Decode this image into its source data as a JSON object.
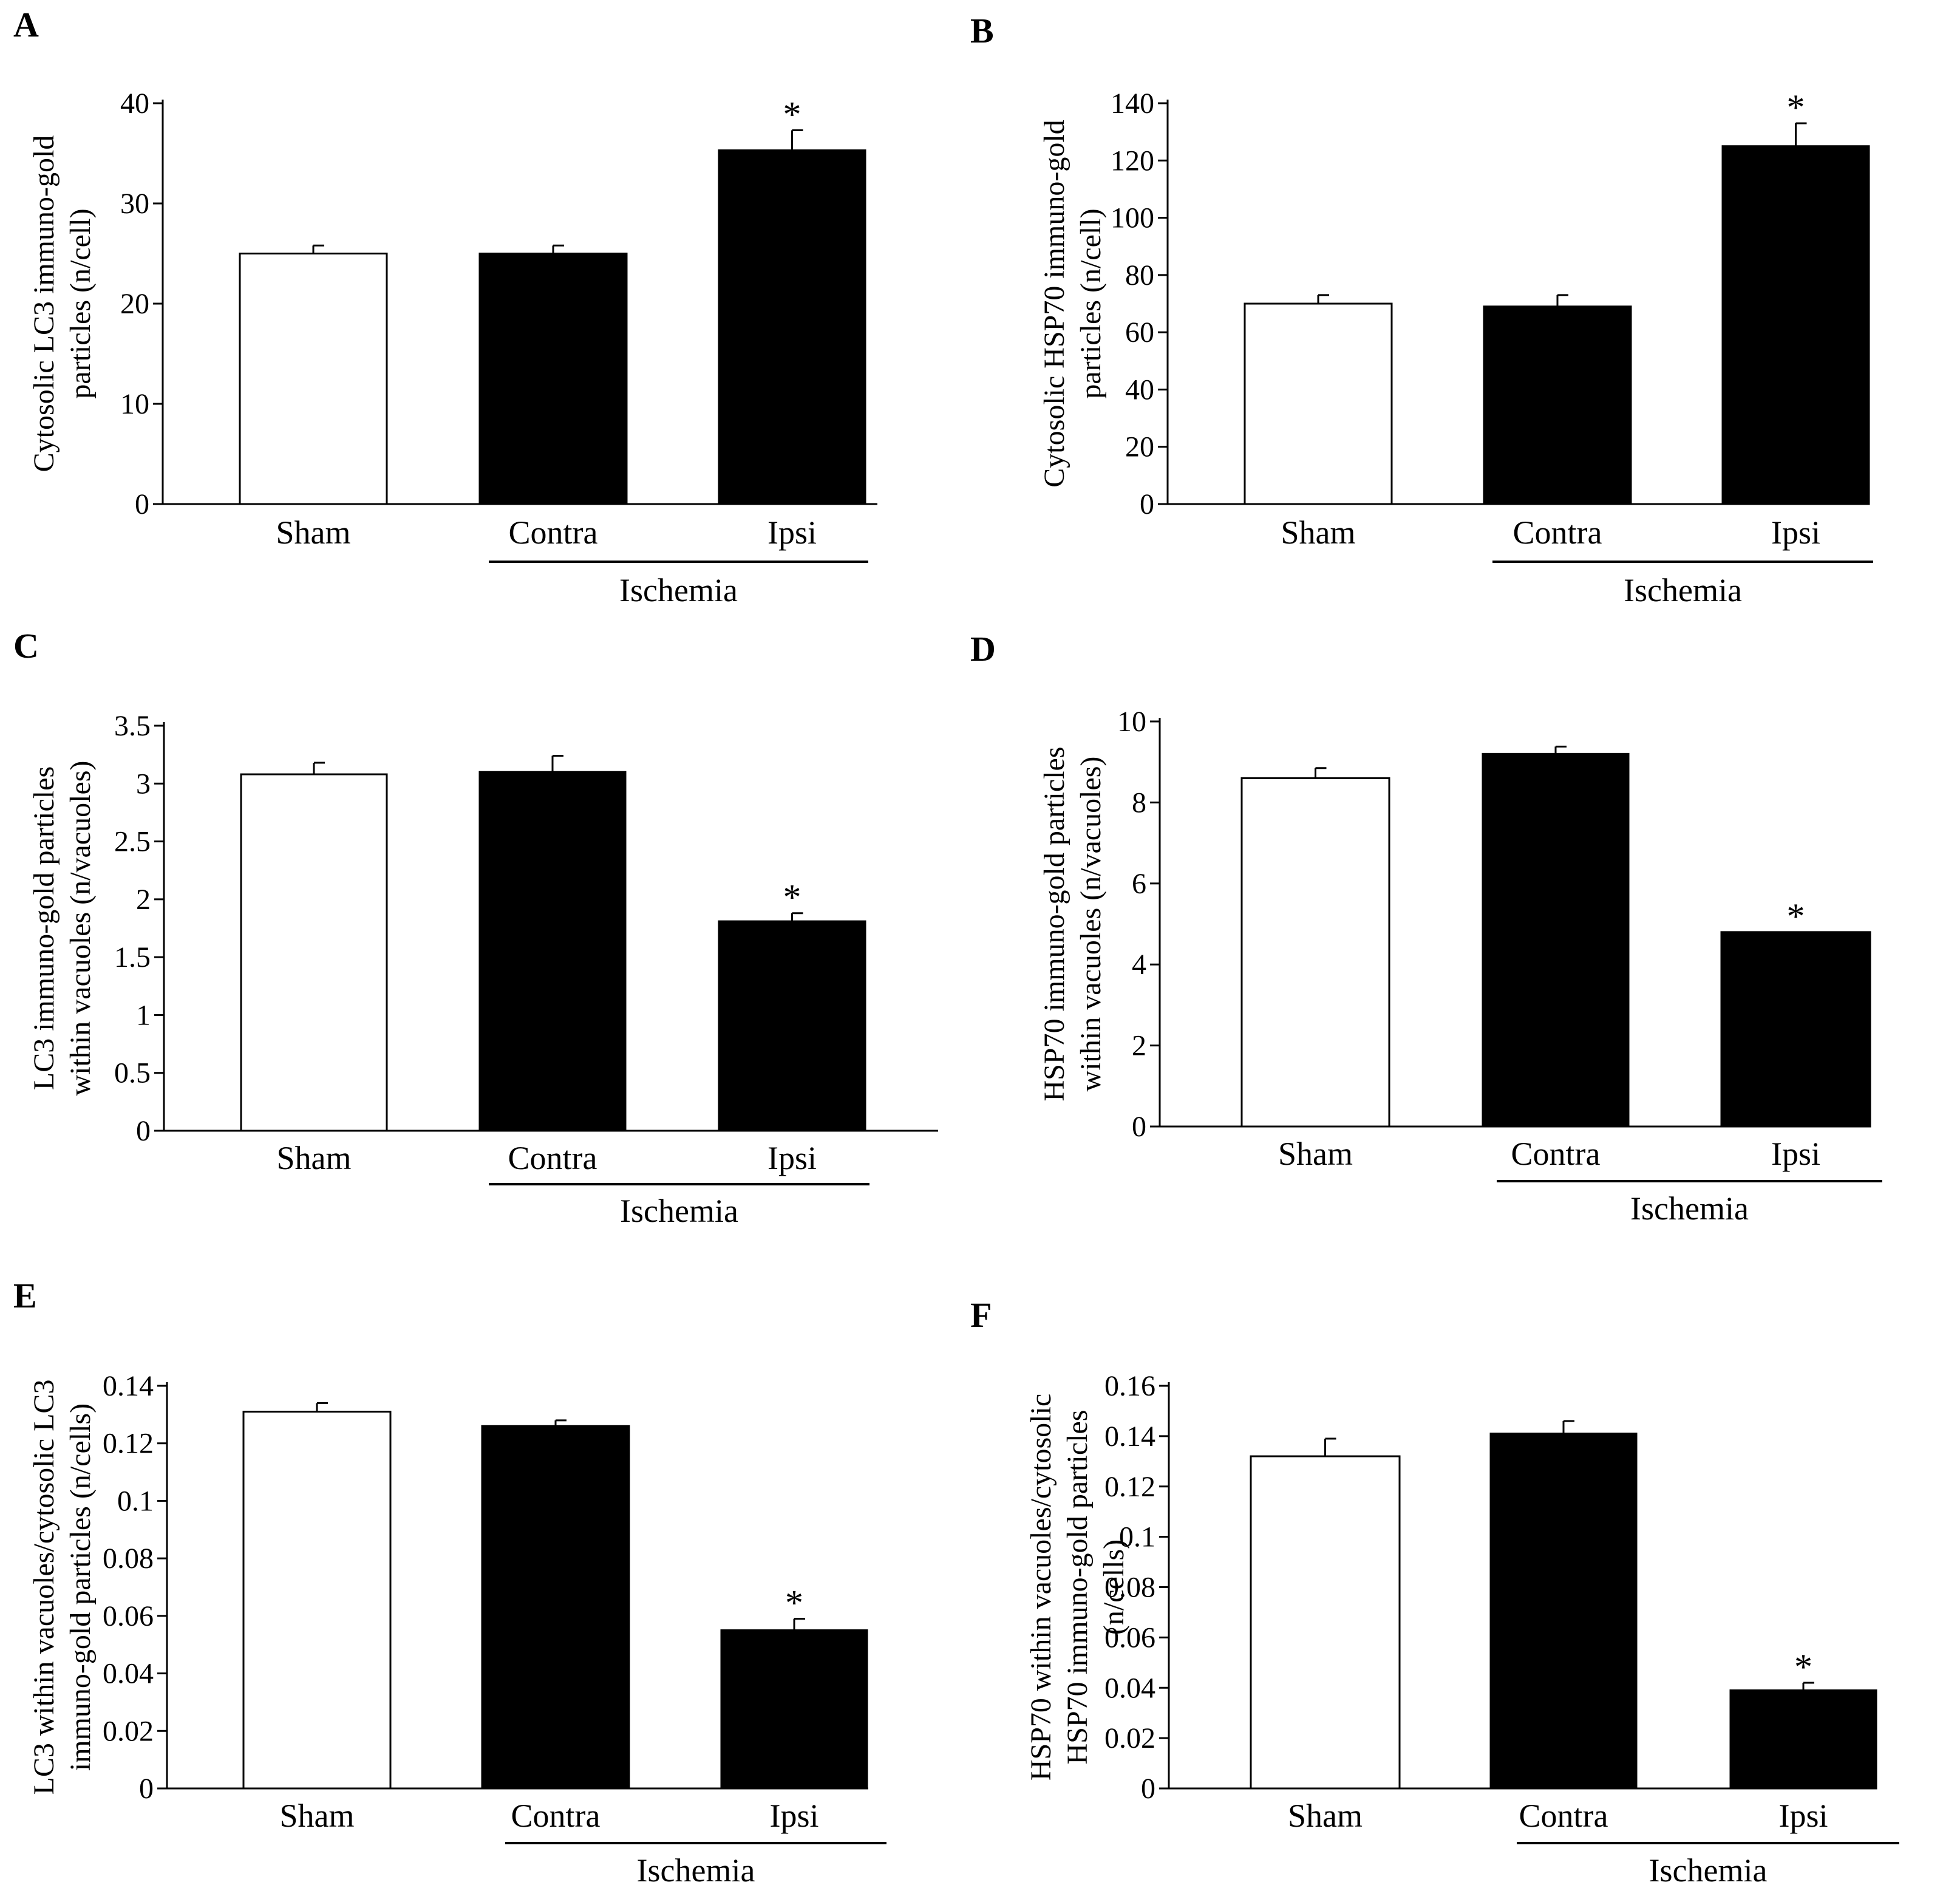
{
  "colors": {
    "background": "#ffffff",
    "axis": "#000000",
    "control": "#ffffff",
    "ischemia": "#000000"
  },
  "chart_data": [
    {
      "type": "bar",
      "panel": "A",
      "categories": [
        "Sham",
        "Contra",
        "Ipsi"
      ],
      "values": [
        25,
        25,
        35.3
      ],
      "errors": [
        0.8,
        0.8,
        2.0
      ],
      "significant": [
        "",
        "",
        "*"
      ],
      "bar_fills": [
        "#ffffff",
        "#000000",
        "#000000"
      ],
      "ylabel": [
        "Cytosolic LC3 immuno-gold",
        "particles (n/cell)"
      ],
      "yticks": [
        "0",
        "10",
        "20",
        "30",
        "40"
      ],
      "ytick_values": [
        0,
        10,
        20,
        30,
        40
      ],
      "ylim": [
        0,
        40
      ],
      "group_label": "Ischemia",
      "group_categories": [
        "Contra",
        "Ipsi"
      ]
    },
    {
      "type": "bar",
      "panel": "B",
      "categories": [
        "Sham",
        "Contra",
        "Ipsi"
      ],
      "values": [
        70,
        69,
        125
      ],
      "errors": [
        3,
        4,
        8
      ],
      "significant": [
        "",
        "",
        "*"
      ],
      "bar_fills": [
        "#ffffff",
        "#000000",
        "#000000"
      ],
      "ylabel": [
        "Cytosolic HSP70 immuno-gold",
        "particles (n/cell)"
      ],
      "yticks": [
        "0",
        "20",
        "40",
        "60",
        "80",
        "100",
        "120",
        "140"
      ],
      "ytick_values": [
        0,
        20,
        40,
        60,
        80,
        100,
        120,
        140
      ],
      "ylim": [
        0,
        140
      ],
      "group_label": "Ischemia",
      "group_categories": [
        "Contra",
        "Ipsi"
      ]
    },
    {
      "type": "bar",
      "panel": "C",
      "categories": [
        "Sham",
        "Contra",
        "Ipsi"
      ],
      "values": [
        3.08,
        3.1,
        1.81
      ],
      "errors": [
        0.1,
        0.14,
        0.07
      ],
      "significant": [
        "",
        "",
        "*"
      ],
      "bar_fills": [
        "#ffffff",
        "#000000",
        "#000000"
      ],
      "ylabel": [
        "LC3 immuno-gold particles",
        "within vacuoles (n/vacuoles)"
      ],
      "yticks": [
        "0",
        "0.5",
        "1",
        "1.5",
        "2",
        "2.5",
        "3",
        "3.5"
      ],
      "ytick_values": [
        0,
        0.5,
        1,
        1.5,
        2,
        2.5,
        3,
        3.5
      ],
      "ylim": [
        0,
        3.5
      ],
      "group_label": "Ischemia",
      "group_categories": [
        "Contra",
        "Ipsi"
      ]
    },
    {
      "type": "bar",
      "panel": "D",
      "categories": [
        "Sham",
        "Contra",
        "Ipsi"
      ],
      "values": [
        8.6,
        9.2,
        4.8
      ],
      "errors": [
        0.25,
        0.18,
        0
      ],
      "significant": [
        "",
        "",
        "*"
      ],
      "bar_fills": [
        "#ffffff",
        "#000000",
        "#000000"
      ],
      "ylabel": [
        "HSP70 immuno-gold particles",
        "within vacuoles (n/vacuoles)"
      ],
      "yticks": [
        "0",
        "2",
        "4",
        "6",
        "8",
        "10"
      ],
      "ytick_values": [
        0,
        2,
        4,
        6,
        8,
        10
      ],
      "ylim": [
        0,
        10
      ],
      "group_label": "Ischemia",
      "group_categories": [
        "Contra",
        "Ipsi"
      ]
    },
    {
      "type": "bar",
      "panel": "E",
      "categories": [
        "Sham",
        "Contra",
        "Ipsi"
      ],
      "values": [
        0.131,
        0.126,
        0.055
      ],
      "errors": [
        0.003,
        0.002,
        0.004
      ],
      "significant": [
        "",
        "",
        "*"
      ],
      "bar_fills": [
        "#ffffff",
        "#000000",
        "#000000"
      ],
      "ylabel": [
        "LC3 within vacuoles/cytosolic LC3",
        "immuno-gold particles (n/cells)"
      ],
      "yticks": [
        "0",
        "0.02",
        "0.04",
        "0.06",
        "0.08",
        "0.1",
        "0.12",
        "0.14"
      ],
      "ytick_values": [
        0,
        0.02,
        0.04,
        0.06,
        0.08,
        0.1,
        0.12,
        0.14
      ],
      "ylim": [
        0,
        0.14
      ],
      "group_label": "Ischemia",
      "group_categories": [
        "Contra",
        "Ipsi"
      ]
    },
    {
      "type": "bar",
      "panel": "F",
      "categories": [
        "Sham",
        "Contra",
        "Ipsi"
      ],
      "values": [
        0.132,
        0.141,
        0.039
      ],
      "errors": [
        0.007,
        0.005,
        0.003
      ],
      "significant": [
        "",
        "",
        "*"
      ],
      "bar_fills": [
        "#ffffff",
        "#000000",
        "#000000"
      ],
      "ylabel": [
        "HSP70 within vacuoles/cytosolic",
        "HSP70 immuno-gold particles",
        "(n/cells)"
      ],
      "yticks": [
        "0",
        "0.02",
        "0.04",
        "0.06",
        "0.08",
        "0.1",
        "0.12",
        "0.14",
        "0.16"
      ],
      "ytick_values": [
        0,
        0.02,
        0.04,
        0.06,
        0.08,
        0.1,
        0.12,
        0.14,
        0.16
      ],
      "ylim": [
        0,
        0.16
      ],
      "group_label": "Ischemia",
      "group_categories": [
        "Contra",
        "Ipsi"
      ]
    }
  ]
}
